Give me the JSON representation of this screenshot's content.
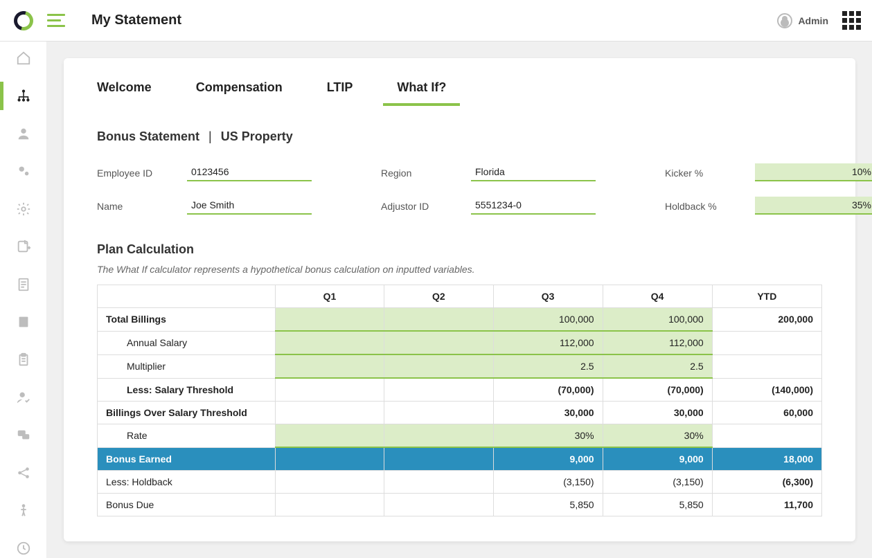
{
  "header": {
    "title": "My Statement",
    "user": "Admin"
  },
  "tabs": [
    {
      "label": "Welcome",
      "active": false
    },
    {
      "label": "Compensation",
      "active": false
    },
    {
      "label": "LTIP",
      "active": false
    },
    {
      "label": "What If?",
      "active": true
    }
  ],
  "section": {
    "title_a": "Bonus Statement",
    "title_b": "US Property"
  },
  "info": {
    "employee_id_label": "Employee ID",
    "employee_id": "0123456",
    "name_label": "Name",
    "name": "Joe Smith",
    "region_label": "Region",
    "region": "Florida",
    "adjustor_id_label": "Adjustor ID",
    "adjustor_id": "5551234-0",
    "kicker_label": "Kicker %",
    "kicker": "10%",
    "holdback_label": "Holdback %",
    "holdback": "35%"
  },
  "plan": {
    "title": "Plan Calculation",
    "description": "The What If calculator represents a hypothetical bonus calculation on inputted variables.",
    "columns": [
      "Q1",
      "Q2",
      "Q3",
      "Q4",
      "YTD"
    ],
    "rows": [
      {
        "label": "Total Billings",
        "bold": true,
        "indent": 0,
        "editable": true,
        "values": [
          "",
          "",
          "100,000",
          "100,000",
          "200,000"
        ],
        "ytd_edit": false,
        "ytd_bold": true
      },
      {
        "label": "Annual Salary",
        "bold": false,
        "indent": 1,
        "editable": true,
        "values": [
          "",
          "",
          "112,000",
          "112,000",
          ""
        ],
        "ytd_edit": false
      },
      {
        "label": "Multiplier",
        "bold": false,
        "indent": 1,
        "editable": true,
        "values": [
          "",
          "",
          "2.5",
          "2.5",
          ""
        ],
        "ytd_edit": false
      },
      {
        "label": "Less: Salary Threshold",
        "bold": true,
        "indent": 1,
        "editable": false,
        "values": [
          "",
          "",
          "(70,000)",
          "(70,000)",
          "(140,000)"
        ],
        "bold_vals": true
      },
      {
        "label": "Billings Over Salary Threshold",
        "bold": true,
        "indent": 0,
        "editable": false,
        "values": [
          "",
          "",
          "30,000",
          "30,000",
          "60,000"
        ],
        "bold_vals": true
      },
      {
        "label": "Rate",
        "bold": false,
        "indent": 1,
        "editable": true,
        "values": [
          "",
          "",
          "30%",
          "30%",
          ""
        ],
        "ytd_edit": false
      },
      {
        "label": "Bonus Earned",
        "bold": true,
        "indent": 0,
        "style": "blue",
        "values": [
          "",
          "",
          "9,000",
          "9,000",
          "18,000"
        ]
      },
      {
        "label": "Less: Holdback",
        "bold": false,
        "indent": 0,
        "editable": false,
        "values": [
          "",
          "",
          "(3,150)",
          "(3,150)",
          "(6,300)"
        ],
        "ytd_bold": true
      },
      {
        "label": "Bonus Due",
        "bold": false,
        "indent": 0,
        "editable": false,
        "values": [
          "",
          "",
          "5,850",
          "5,850",
          "11,700"
        ],
        "ytd_bold": true
      }
    ]
  },
  "colors": {
    "accent": "#8bc34a",
    "highlight_bg": "#dcedc8",
    "blue_row": "#2a8fbd",
    "border": "#dddddd",
    "background": "#f0f0f0",
    "text": "#333333"
  }
}
